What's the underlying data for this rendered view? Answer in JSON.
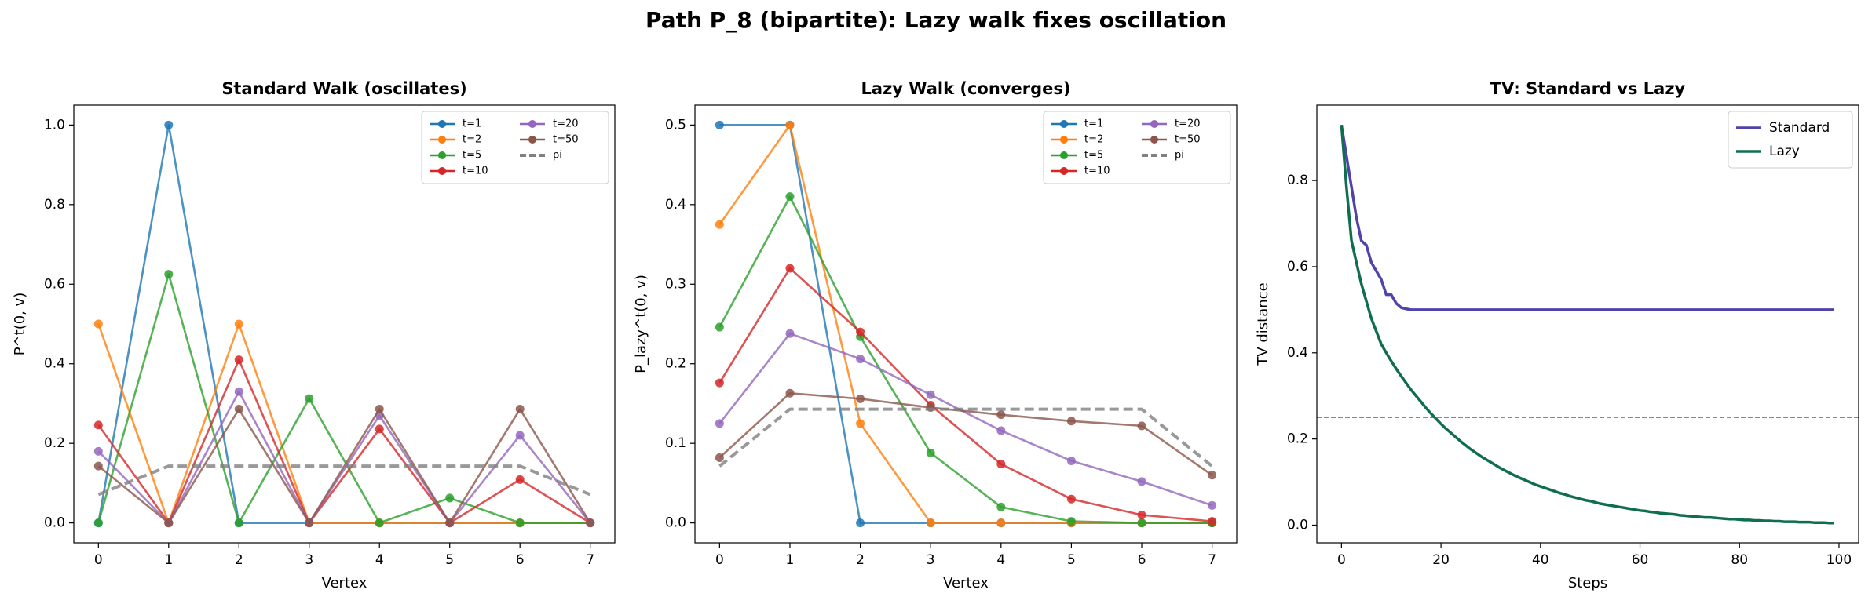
{
  "title": "Path P_8 (bipartite): Lazy walk fixes oscillation",
  "chart_data": [
    {
      "type": "line",
      "title": "Standard Walk (oscillates)",
      "xlabel": "Vertex",
      "ylabel": "P^t(0, v)",
      "x": [
        0,
        1,
        2,
        3,
        4,
        5,
        6,
        7
      ],
      "xlim": [
        -0.35,
        7.35
      ],
      "xticks": [
        0,
        1,
        2,
        3,
        4,
        5,
        6,
        7
      ],
      "ylim": [
        -0.05,
        1.05
      ],
      "yticks": [
        {
          "value": 0,
          "label": "0.0"
        },
        0.2,
        0.4,
        0.6,
        0.8,
        {
          "value": 1,
          "label": "1.0"
        }
      ],
      "legend": "upper right",
      "legend_columns": 2,
      "grid": false,
      "series": [
        {
          "name": "t=1",
          "color": "#1f77b4",
          "marker": true,
          "values": [
            0,
            1,
            0,
            0,
            0,
            0,
            0,
            0
          ]
        },
        {
          "name": "t=2",
          "color": "#ff7f0e",
          "marker": true,
          "values": [
            0.5,
            0,
            0.5,
            0,
            0,
            0,
            0,
            0
          ]
        },
        {
          "name": "t=5",
          "color": "#2ca02c",
          "marker": true,
          "values": [
            0,
            0.625,
            0,
            0.3125,
            0,
            0.0625,
            0,
            0
          ]
        },
        {
          "name": "t=10",
          "color": "#d62728",
          "marker": true,
          "values": [
            0.246,
            0,
            0.41,
            0,
            0.236,
            0,
            0.109,
            0
          ]
        },
        {
          "name": "t=20",
          "color": "#9467bd",
          "marker": true,
          "values": [
            0.18,
            0,
            0.33,
            0,
            0.27,
            0,
            0.22,
            0
          ]
        },
        {
          "name": "t=50",
          "color": "#8c564b",
          "marker": true,
          "values": [
            0.143,
            0,
            0.286,
            0,
            0.286,
            0,
            0.286,
            0
          ]
        },
        {
          "name": "pi",
          "color": "#808080",
          "dashed": true,
          "values": [
            0.0714,
            0.1429,
            0.1429,
            0.1429,
            0.1429,
            0.1429,
            0.1429,
            0.0714
          ]
        }
      ]
    },
    {
      "type": "line",
      "title": "Lazy Walk (converges)",
      "xlabel": "Vertex",
      "ylabel": "P_lazy^t(0, v)",
      "x": [
        0,
        1,
        2,
        3,
        4,
        5,
        6,
        7
      ],
      "xlim": [
        -0.35,
        7.35
      ],
      "xticks": [
        0,
        1,
        2,
        3,
        4,
        5,
        6,
        7
      ],
      "ylim": [
        -0.025,
        0.525
      ],
      "yticks": [
        {
          "value": 0,
          "label": "0.0"
        },
        0.1,
        0.2,
        0.3,
        0.4,
        0.5
      ],
      "legend": "upper right",
      "legend_columns": 2,
      "grid": false,
      "series": [
        {
          "name": "t=1",
          "color": "#1f77b4",
          "marker": true,
          "values": [
            0.5,
            0.5,
            0,
            0,
            0,
            0,
            0,
            0
          ]
        },
        {
          "name": "t=2",
          "color": "#ff7f0e",
          "marker": true,
          "values": [
            0.375,
            0.5,
            0.125,
            0,
            0,
            0,
            0,
            0
          ]
        },
        {
          "name": "t=5",
          "color": "#2ca02c",
          "marker": true,
          "values": [
            0.246,
            0.41,
            0.234,
            0.088,
            0.02,
            0.002,
            0,
            0
          ]
        },
        {
          "name": "t=10",
          "color": "#d62728",
          "marker": true,
          "values": [
            0.176,
            0.32,
            0.24,
            0.148,
            0.074,
            0.03,
            0.01,
            0.002
          ]
        },
        {
          "name": "t=20",
          "color": "#9467bd",
          "marker": true,
          "values": [
            0.125,
            0.238,
            0.206,
            0.161,
            0.116,
            0.078,
            0.052,
            0.022
          ]
        },
        {
          "name": "t=50",
          "color": "#8c564b",
          "marker": true,
          "values": [
            0.082,
            0.163,
            0.156,
            0.145,
            0.136,
            0.128,
            0.122,
            0.06
          ]
        },
        {
          "name": "pi",
          "color": "#808080",
          "dashed": true,
          "values": [
            0.0714,
            0.1429,
            0.1429,
            0.1429,
            0.1429,
            0.1429,
            0.1429,
            0.0714
          ]
        }
      ]
    },
    {
      "type": "line",
      "title": "TV: Standard vs Lazy",
      "xlabel": "Steps",
      "ylabel": "TV distance",
      "x": [
        0,
        1,
        2,
        3,
        4,
        5,
        6,
        7,
        8,
        9,
        10,
        11,
        12,
        13,
        14,
        15,
        16,
        17,
        18,
        19,
        20,
        21,
        22,
        23,
        24,
        25,
        26,
        27,
        28,
        29,
        30,
        31,
        32,
        33,
        34,
        35,
        36,
        37,
        38,
        39,
        40,
        41,
        42,
        43,
        44,
        45,
        46,
        47,
        48,
        49,
        50,
        51,
        52,
        53,
        54,
        55,
        56,
        57,
        58,
        59,
        60,
        61,
        62,
        63,
        64,
        65,
        66,
        67,
        68,
        69,
        70,
        71,
        72,
        73,
        74,
        75,
        76,
        77,
        78,
        79,
        80,
        81,
        82,
        83,
        84,
        85,
        86,
        87,
        88,
        89,
        90,
        91,
        92,
        93,
        94,
        95,
        96,
        97,
        98,
        99
      ],
      "xlim": [
        -4.95,
        103.95
      ],
      "xticks": [
        0,
        20,
        40,
        60,
        80,
        100
      ],
      "ylim": [
        -0.041,
        0.975
      ],
      "yticks": [
        {
          "value": 0,
          "label": "0.0"
        },
        0.2,
        0.4,
        0.6,
        0.8
      ],
      "legend": "upper right",
      "legend_columns": 1,
      "grid": false,
      "hlines": [
        {
          "value": 0.25,
          "color": "#e0701a"
        }
      ],
      "series": [
        {
          "name": "Standard",
          "color": "#4f44aa",
          "width": 3.5,
          "values": [
            0.929,
            0.857,
            0.786,
            0.714,
            0.66,
            0.65,
            0.61,
            0.59,
            0.57,
            0.535,
            0.535,
            0.515,
            0.505,
            0.502,
            0.5,
            0.5,
            0.5,
            0.5,
            0.5,
            0.5,
            0.5,
            0.5,
            0.5,
            0.5,
            0.5,
            0.5,
            0.5,
            0.5,
            0.5,
            0.5,
            0.5,
            0.5,
            0.5,
            0.5,
            0.5,
            0.5,
            0.5,
            0.5,
            0.5,
            0.5,
            0.5,
            0.5,
            0.5,
            0.5,
            0.5,
            0.5,
            0.5,
            0.5,
            0.5,
            0.5,
            0.5,
            0.5,
            0.5,
            0.5,
            0.5,
            0.5,
            0.5,
            0.5,
            0.5,
            0.5,
            0.5,
            0.5,
            0.5,
            0.5,
            0.5,
            0.5,
            0.5,
            0.5,
            0.5,
            0.5,
            0.5,
            0.5,
            0.5,
            0.5,
            0.5,
            0.5,
            0.5,
            0.5,
            0.5,
            0.5,
            0.5,
            0.5,
            0.5,
            0.5,
            0.5,
            0.5,
            0.5,
            0.5,
            0.5,
            0.5,
            0.5,
            0.5,
            0.5,
            0.5,
            0.5,
            0.5,
            0.5,
            0.5,
            0.5,
            0.5
          ]
        },
        {
          "name": "Lazy",
          "color": "#0f6e50",
          "width": 3.5,
          "values": [
            0.929,
            0.786,
            0.661,
            0.61,
            0.56,
            0.52,
            0.48,
            0.45,
            0.42,
            0.4,
            0.381,
            0.363,
            0.346,
            0.33,
            0.314,
            0.3,
            0.286,
            0.272,
            0.259,
            0.247,
            0.235,
            0.224,
            0.214,
            0.204,
            0.194,
            0.185,
            0.176,
            0.168,
            0.16,
            0.153,
            0.146,
            0.139,
            0.132,
            0.126,
            0.12,
            0.114,
            0.109,
            0.104,
            0.099,
            0.094,
            0.09,
            0.086,
            0.082,
            0.078,
            0.074,
            0.071,
            0.067,
            0.064,
            0.061,
            0.058,
            0.056,
            0.053,
            0.05,
            0.048,
            0.046,
            0.044,
            0.042,
            0.04,
            0.038,
            0.036,
            0.034,
            0.033,
            0.031,
            0.03,
            0.028,
            0.027,
            0.026,
            0.025,
            0.023,
            0.022,
            0.021,
            0.02,
            0.019,
            0.018,
            0.018,
            0.017,
            0.016,
            0.015,
            0.014,
            0.014,
            0.013,
            0.012,
            0.012,
            0.011,
            0.011,
            0.01,
            0.01,
            0.009,
            0.009,
            0.008,
            0.008,
            0.008,
            0.007,
            0.007,
            0.007,
            0.006,
            0.006,
            0.006,
            0.005,
            0.005
          ]
        }
      ]
    }
  ]
}
